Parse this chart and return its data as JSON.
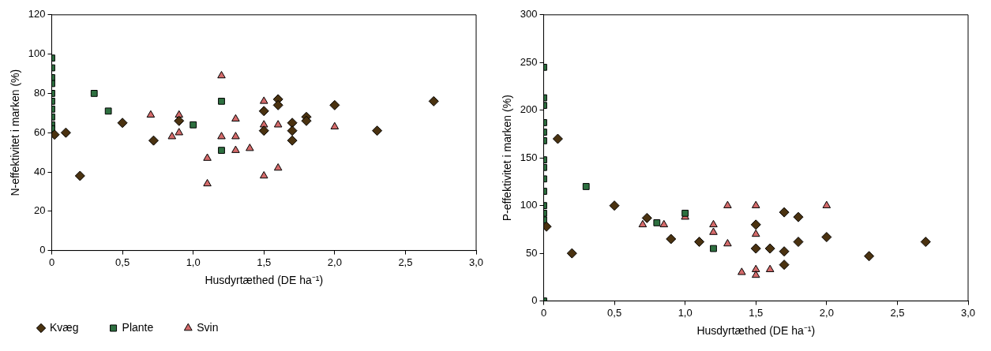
{
  "chart_data": [
    {
      "type": "scatter",
      "xlabel": "Husdyrtæthed (DE ha⁻¹)",
      "ylabel": "N-effektivitet i marken (%)",
      "xlim": [
        0,
        3
      ],
      "ylim": [
        0,
        120
      ],
      "xticks": [
        0,
        {
          "value": 0.5,
          "label": "0,5"
        },
        {
          "value": 1,
          "label": "1,0"
        },
        {
          "value": 1.5,
          "label": "1,5"
        },
        {
          "value": 2,
          "label": "2,0"
        },
        {
          "value": 2.5,
          "label": "2,5"
        },
        {
          "value": 3,
          "label": "3,0"
        }
      ],
      "yticks": [
        0,
        20,
        40,
        60,
        80,
        100,
        120
      ],
      "grid": false,
      "legend": "bottom",
      "series": [
        {
          "name": "Kvæg",
          "color": "#4a3210",
          "marker": "diamond",
          "x": [
            0.02,
            0.1,
            0.2,
            0.5,
            0.72,
            0.9,
            1.5,
            1.5,
            1.6,
            1.6,
            1.7,
            1.7,
            1.7,
            1.8,
            1.8,
            2.0,
            2.3,
            2.7
          ],
          "values": [
            59,
            60,
            38,
            65,
            56,
            66,
            71,
            61,
            77,
            74,
            65,
            61,
            56,
            68,
            66,
            74,
            61,
            76
          ]
        },
        {
          "name": "Plante",
          "color": "#2e7040",
          "marker": "square",
          "x": [
            0,
            0,
            0,
            0,
            0,
            0,
            0,
            0,
            0,
            0,
            0.3,
            0.4,
            1.0,
            1.2,
            1.2
          ],
          "values": [
            98,
            93,
            88,
            85,
            80,
            76,
            72,
            68,
            64,
            62,
            80,
            71,
            64,
            76,
            51
          ]
        },
        {
          "name": "Svin",
          "color": "#d46a6a",
          "marker": "triangle",
          "x": [
            0.7,
            0.85,
            0.9,
            0.9,
            1.1,
            1.1,
            1.2,
            1.2,
            1.3,
            1.3,
            1.3,
            1.4,
            1.5,
            1.5,
            1.5,
            1.6,
            1.6,
            2.0
          ],
          "values": [
            69,
            58,
            69,
            60,
            47,
            34,
            89,
            58,
            67,
            58,
            51,
            52,
            76,
            64,
            38,
            64,
            42,
            63
          ]
        }
      ]
    },
    {
      "type": "scatter",
      "xlabel": "Husdyrtæthed (DE ha⁻¹)",
      "ylabel": "P-effektivitet i marken (%)",
      "xlim": [
        0,
        3
      ],
      "ylim": [
        0,
        300
      ],
      "xticks": [
        0,
        {
          "value": 0.5,
          "label": "0,5"
        },
        {
          "value": 1,
          "label": "1,0"
        },
        {
          "value": 1.5,
          "label": "1,5"
        },
        {
          "value": 2,
          "label": "2,0"
        },
        {
          "value": 2.5,
          "label": "2,5"
        },
        {
          "value": 3,
          "label": "3,0"
        }
      ],
      "yticks": [
        0,
        50,
        100,
        150,
        200,
        250,
        300
      ],
      "grid": false,
      "legend": false,
      "series": [
        {
          "color": "#4a3210",
          "marker": "diamond",
          "x": [
            0.02,
            0.1,
            0.2,
            0.5,
            0.73,
            0.9,
            1.1,
            1.5,
            1.5,
            1.6,
            1.7,
            1.7,
            1.7,
            1.8,
            1.8,
            2.0,
            2.3,
            2.7
          ],
          "values": [
            78,
            170,
            50,
            100,
            87,
            65,
            62,
            80,
            55,
            55,
            93,
            52,
            38,
            88,
            62,
            67,
            47,
            62
          ]
        },
        {
          "color": "#2e7040",
          "marker": "square",
          "x": [
            0,
            0,
            0,
            0,
            0,
            0,
            0,
            0,
            0,
            0,
            0,
            0,
            0,
            0,
            0.3,
            0.8,
            1.0,
            1.2
          ],
          "values": [
            245,
            213,
            205,
            187,
            177,
            168,
            148,
            140,
            128,
            115,
            100,
            92,
            85,
            0,
            120,
            82,
            92,
            55
          ]
        },
        {
          "color": "#d46a6a",
          "marker": "triangle",
          "x": [
            0.7,
            0.85,
            1.0,
            1.2,
            1.2,
            1.3,
            1.3,
            1.4,
            1.5,
            1.5,
            1.5,
            1.5,
            1.6,
            2.0
          ],
          "values": [
            80,
            80,
            88,
            80,
            72,
            100,
            60,
            30,
            100,
            70,
            33,
            27,
            33,
            100
          ]
        }
      ]
    }
  ]
}
